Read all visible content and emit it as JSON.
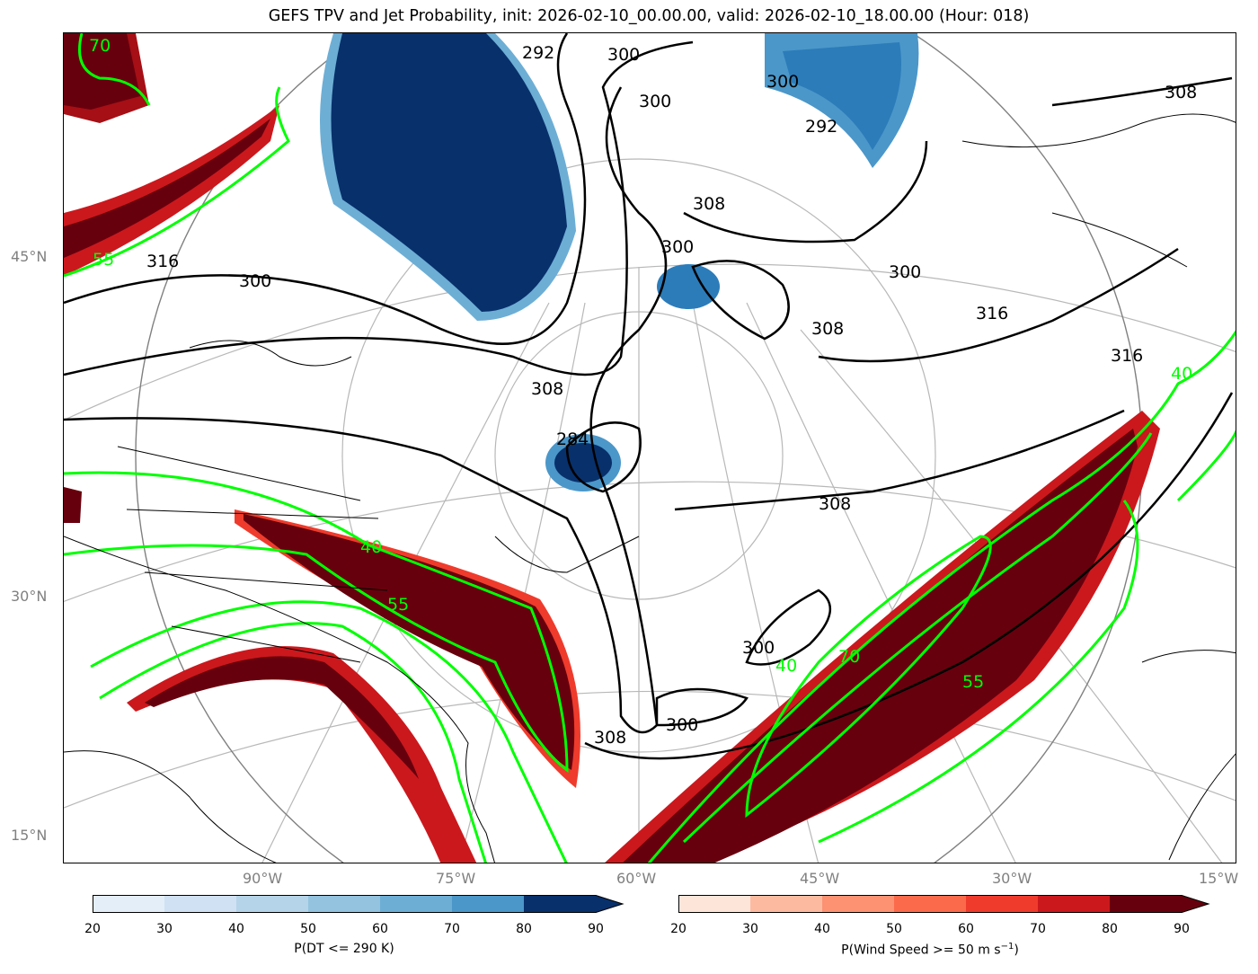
{
  "title": "GEFS TPV and Jet Probability, init: 2026-02-10_00.00.00, valid: 2026-02-10_18.00.00 (Hour: 018)",
  "colors": {
    "blue_max": "#08306b",
    "red_max": "#67000d",
    "jet_contour": "#00ff00",
    "theta_contour": "#000000",
    "grid": "#b0b0b0"
  },
  "lat_labels": [
    "45°N",
    "30°N",
    "15°N"
  ],
  "lon_labels": [
    "90°W",
    "75°W",
    "60°W",
    "45°W",
    "30°W",
    "15°W"
  ],
  "theta_contour_labels": [
    "292",
    "300",
    "300",
    "300",
    "300",
    "308",
    "308",
    "308",
    "308",
    "308",
    "316",
    "316",
    "316",
    "300",
    "300",
    "292",
    "284",
    "300",
    "308",
    "300"
  ],
  "jet_contour_labels": [
    "70",
    "55",
    "40",
    "55",
    "40",
    "70",
    "55",
    "40"
  ],
  "colorbar_tpv": {
    "label": "P(DT <= 290 K)",
    "ticks": [
      "20",
      "30",
      "40",
      "50",
      "60",
      "70",
      "80",
      "90"
    ],
    "colors": [
      "#e3eef8",
      "#cfe1f2",
      "#b5d4e9",
      "#93c3df",
      "#6daed5",
      "#4b97c9",
      "#2c7cba",
      "#08306b"
    ]
  },
  "colorbar_jet": {
    "label_main": "P(Wind Speed >= 50 m s",
    "label_sup": "−1",
    "label_end": ")",
    "ticks": [
      "20",
      "30",
      "40",
      "50",
      "60",
      "70",
      "80",
      "90"
    ],
    "colors": [
      "#fee5d9",
      "#fcbba1",
      "#fc9272",
      "#fb6a4a",
      "#ef3b2c",
      "#cb181d",
      "#a50f15",
      "#67000d"
    ]
  }
}
